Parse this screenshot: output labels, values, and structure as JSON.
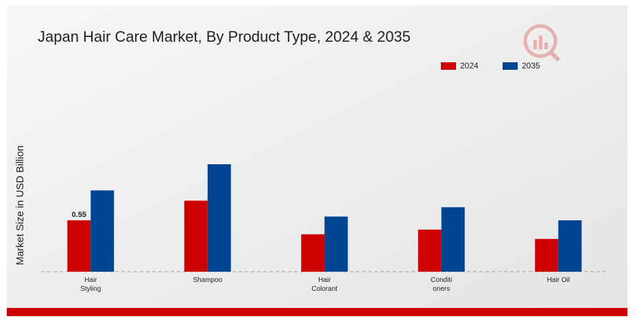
{
  "chart_data": {
    "type": "bar",
    "title": "Japan Hair Care Market, By Product Type, 2024 & 2035",
    "y_label": "Market Size in USD Billion",
    "categories": [
      "Hair\nStyling",
      "Shampoo",
      "Hair\nColorant",
      "Conditi\noners",
      "Hair Oil"
    ],
    "series": [
      {
        "name": "2024",
        "color": "#cc0000",
        "values": [
          0.55,
          0.76,
          0.4,
          0.45,
          0.35
        ]
      },
      {
        "name": "2035",
        "color": "#004494",
        "values": [
          0.87,
          1.15,
          0.59,
          0.69,
          0.55
        ]
      }
    ],
    "ylim": [
      0,
      2
    ]
  }
}
